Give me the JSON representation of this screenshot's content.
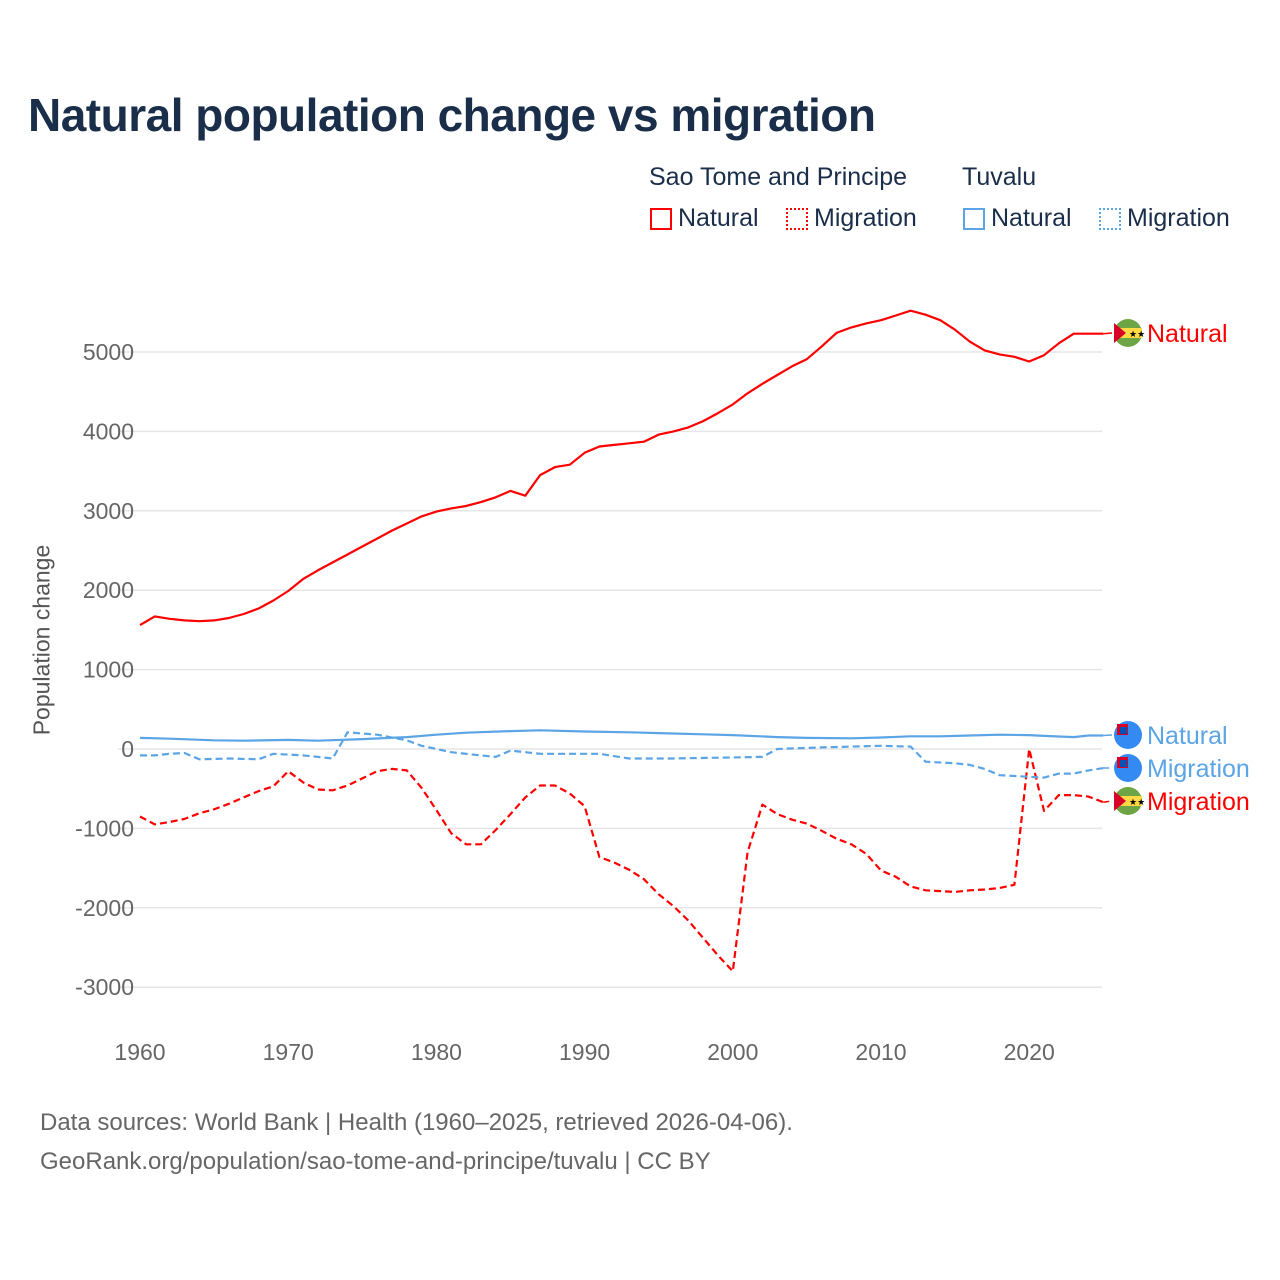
{
  "title": "Natural population change vs migration",
  "legend": {
    "groups": [
      {
        "name": "Sao Tome and Principe",
        "items": [
          "Natural",
          "Migration"
        ],
        "color": "#ff0000"
      },
      {
        "name": "Tuvalu",
        "items": [
          "Natural",
          "Migration"
        ],
        "color": "#5ba4e6"
      }
    ]
  },
  "footer": {
    "line1": "Data sources: World Bank | Health (1960–2025, retrieved 2026-04-06).",
    "line2": "GeoRank.org/population/sao-tome-and-principe/tuvalu | CC BY"
  },
  "chart_data": {
    "type": "line",
    "title": "Natural population change vs migration",
    "xlabel": "",
    "ylabel": "Population change",
    "xlim": [
      1960,
      2025
    ],
    "ylim": [
      -3300,
      5700
    ],
    "x_ticks": [
      "1960",
      "1970",
      "1980",
      "1990",
      "2000",
      "2010",
      "2020"
    ],
    "y_ticks": [
      "5000",
      "4000",
      "3000",
      "2000",
      "1000",
      "0",
      "-1000",
      "-2000",
      "-3000"
    ],
    "grid": true,
    "series": [
      {
        "name": "Sao Tome and Principe Natural",
        "label": "Natural",
        "color": "#ff0000",
        "dash": "solid",
        "points": [
          [
            1960,
            1560
          ],
          [
            1961,
            1670
          ],
          [
            1962,
            1640
          ],
          [
            1963,
            1620
          ],
          [
            1964,
            1610
          ],
          [
            1965,
            1620
          ],
          [
            1966,
            1650
          ],
          [
            1967,
            1700
          ],
          [
            1968,
            1770
          ],
          [
            1969,
            1870
          ],
          [
            1970,
            1990
          ],
          [
            1971,
            2140
          ],
          [
            1972,
            2250
          ],
          [
            1973,
            2350
          ],
          [
            1974,
            2450
          ],
          [
            1975,
            2550
          ],
          [
            1976,
            2650
          ],
          [
            1977,
            2750
          ],
          [
            1978,
            2840
          ],
          [
            1979,
            2930
          ],
          [
            1980,
            2990
          ],
          [
            1981,
            3030
          ],
          [
            1982,
            3060
          ],
          [
            1983,
            3110
          ],
          [
            1984,
            3170
          ],
          [
            1985,
            3250
          ],
          [
            1986,
            3190
          ],
          [
            1987,
            3450
          ],
          [
            1988,
            3550
          ],
          [
            1989,
            3580
          ],
          [
            1990,
            3730
          ],
          [
            1991,
            3810
          ],
          [
            1992,
            3830
          ],
          [
            1993,
            3850
          ],
          [
            1994,
            3870
          ],
          [
            1995,
            3960
          ],
          [
            1996,
            4000
          ],
          [
            1997,
            4050
          ],
          [
            1998,
            4130
          ],
          [
            1999,
            4230
          ],
          [
            2000,
            4340
          ],
          [
            2001,
            4480
          ],
          [
            2002,
            4600
          ],
          [
            2003,
            4710
          ],
          [
            2004,
            4820
          ],
          [
            2005,
            4910
          ],
          [
            2006,
            5070
          ],
          [
            2007,
            5240
          ],
          [
            2008,
            5310
          ],
          [
            2009,
            5360
          ],
          [
            2010,
            5400
          ],
          [
            2011,
            5460
          ],
          [
            2012,
            5520
          ],
          [
            2013,
            5470
          ],
          [
            2014,
            5400
          ],
          [
            2015,
            5280
          ],
          [
            2016,
            5130
          ],
          [
            2017,
            5020
          ],
          [
            2018,
            4970
          ],
          [
            2019,
            4940
          ],
          [
            2020,
            4880
          ],
          [
            2021,
            4960
          ],
          [
            2022,
            5110
          ],
          [
            2023,
            5230
          ],
          [
            2024,
            5230
          ],
          [
            2025,
            5230
          ]
        ]
      },
      {
        "name": "Sao Tome and Principe Migration",
        "label": "Migration",
        "color": "#ff0000",
        "dash": "dashed",
        "points": [
          [
            1960,
            -850
          ],
          [
            1961,
            -950
          ],
          [
            1962,
            -920
          ],
          [
            1963,
            -880
          ],
          [
            1964,
            -810
          ],
          [
            1965,
            -760
          ],
          [
            1966,
            -690
          ],
          [
            1967,
            -610
          ],
          [
            1968,
            -530
          ],
          [
            1969,
            -470
          ],
          [
            1970,
            -280
          ],
          [
            1971,
            -420
          ],
          [
            1972,
            -510
          ],
          [
            1973,
            -520
          ],
          [
            1974,
            -460
          ],
          [
            1975,
            -370
          ],
          [
            1976,
            -280
          ],
          [
            1977,
            -250
          ],
          [
            1978,
            -270
          ],
          [
            1979,
            -490
          ],
          [
            1980,
            -770
          ],
          [
            1981,
            -1060
          ],
          [
            1982,
            -1200
          ],
          [
            1983,
            -1200
          ],
          [
            1984,
            -1020
          ],
          [
            1985,
            -820
          ],
          [
            1986,
            -610
          ],
          [
            1987,
            -460
          ],
          [
            1988,
            -460
          ],
          [
            1989,
            -560
          ],
          [
            1990,
            -720
          ],
          [
            1991,
            -1360
          ],
          [
            1992,
            -1430
          ],
          [
            1993,
            -1520
          ],
          [
            1994,
            -1640
          ],
          [
            1995,
            -1830
          ],
          [
            1996,
            -1980
          ],
          [
            1997,
            -2160
          ],
          [
            1998,
            -2380
          ],
          [
            1999,
            -2600
          ],
          [
            2000,
            -2800
          ],
          [
            2001,
            -1300
          ],
          [
            2002,
            -700
          ],
          [
            2003,
            -820
          ],
          [
            2004,
            -890
          ],
          [
            2005,
            -940
          ],
          [
            2006,
            -1030
          ],
          [
            2007,
            -1130
          ],
          [
            2008,
            -1200
          ],
          [
            2009,
            -1320
          ],
          [
            2010,
            -1530
          ],
          [
            2011,
            -1610
          ],
          [
            2012,
            -1730
          ],
          [
            2013,
            -1780
          ],
          [
            2014,
            -1790
          ],
          [
            2015,
            -1800
          ],
          [
            2016,
            -1780
          ],
          [
            2017,
            -1770
          ],
          [
            2018,
            -1750
          ],
          [
            2019,
            -1710
          ],
          [
            2020,
            0
          ],
          [
            2021,
            -780
          ],
          [
            2022,
            -580
          ],
          [
            2023,
            -580
          ],
          [
            2024,
            -600
          ],
          [
            2025,
            -670
          ]
        ]
      },
      {
        "name": "Tuvalu Natural",
        "label": "Natural",
        "color": "#5ba4e6",
        "dash": "solid",
        "points": [
          [
            1960,
            140
          ],
          [
            1962,
            130
          ],
          [
            1965,
            110
          ],
          [
            1967,
            105
          ],
          [
            1970,
            115
          ],
          [
            1972,
            105
          ],
          [
            1975,
            125
          ],
          [
            1978,
            150
          ],
          [
            1980,
            180
          ],
          [
            1982,
            205
          ],
          [
            1985,
            225
          ],
          [
            1987,
            235
          ],
          [
            1990,
            220
          ],
          [
            1993,
            210
          ],
          [
            1995,
            200
          ],
          [
            1998,
            185
          ],
          [
            2000,
            175
          ],
          [
            2003,
            150
          ],
          [
            2005,
            140
          ],
          [
            2008,
            135
          ],
          [
            2010,
            145
          ],
          [
            2012,
            160
          ],
          [
            2014,
            160
          ],
          [
            2016,
            170
          ],
          [
            2018,
            180
          ],
          [
            2020,
            175
          ],
          [
            2021,
            165
          ],
          [
            2023,
            150
          ],
          [
            2024,
            170
          ],
          [
            2025,
            170
          ]
        ]
      },
      {
        "name": "Tuvalu Migration",
        "label": "Migration",
        "color": "#5ba4e6",
        "dash": "dashed",
        "points": [
          [
            1960,
            -80
          ],
          [
            1961,
            -80
          ],
          [
            1962,
            -60
          ],
          [
            1963,
            -50
          ],
          [
            1964,
            -130
          ],
          [
            1966,
            -120
          ],
          [
            1968,
            -130
          ],
          [
            1969,
            -60
          ],
          [
            1971,
            -80
          ],
          [
            1972,
            -100
          ],
          [
            1973,
            -120
          ],
          [
            1974,
            210
          ],
          [
            1976,
            180
          ],
          [
            1978,
            110
          ],
          [
            1979,
            40
          ],
          [
            1981,
            -40
          ],
          [
            1983,
            -80
          ],
          [
            1984,
            -100
          ],
          [
            1985,
            -20
          ],
          [
            1987,
            -60
          ],
          [
            1990,
            -60
          ],
          [
            1991,
            -60
          ],
          [
            1993,
            -120
          ],
          [
            1996,
            -120
          ],
          [
            2002,
            -100
          ],
          [
            2003,
            0
          ],
          [
            2006,
            20
          ],
          [
            2010,
            40
          ],
          [
            2012,
            30
          ],
          [
            2013,
            -160
          ],
          [
            2015,
            -180
          ],
          [
            2016,
            -200
          ],
          [
            2017,
            -250
          ],
          [
            2018,
            -330
          ],
          [
            2020,
            -350
          ],
          [
            2021,
            -360
          ],
          [
            2022,
            -310
          ],
          [
            2023,
            -310
          ],
          [
            2024,
            -270
          ],
          [
            2025,
            -240
          ]
        ]
      }
    ]
  }
}
